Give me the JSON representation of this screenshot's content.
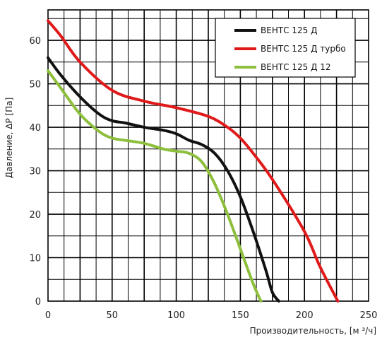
{
  "chart_data": {
    "type": "line",
    "xlabel": "Производительность, [м ³/ч]",
    "ylabel": "Давление, ΔP [Па]",
    "xlim": [
      0,
      250
    ],
    "ylim": [
      0,
      67
    ],
    "xticks": [
      "0",
      "50",
      "100",
      "150",
      "200",
      "250"
    ],
    "yticks": [
      "0",
      "10",
      "20",
      "30",
      "40",
      "50",
      "60"
    ],
    "grid": true,
    "legend_position": "top-right",
    "series": [
      {
        "name": "ВЕНТС 125 Д",
        "color": "#111111",
        "x": [
          0,
          10,
          25,
          40,
          50,
          60,
          75,
          90,
          100,
          110,
          120,
          130,
          140,
          150,
          160,
          170,
          175,
          180
        ],
        "y": [
          56,
          52,
          47,
          43,
          41.5,
          41,
          40,
          39.3,
          38.5,
          37,
          36,
          34,
          30,
          24,
          16,
          7,
          2,
          0
        ]
      },
      {
        "name": "ВЕНТС 125 Д турбо",
        "color": "#e01a1a",
        "x": [
          0,
          10,
          25,
          50,
          75,
          100,
          125,
          140,
          150,
          160,
          175,
          200,
          212,
          226
        ],
        "y": [
          64.5,
          61,
          55,
          48.5,
          46,
          44.5,
          42.5,
          40,
          37.5,
          34,
          28,
          16,
          8,
          0
        ]
      },
      {
        "name": "ВЕНТС 125 Д 12",
        "color": "#8dbf3c",
        "x": [
          0,
          10,
          25,
          40,
          50,
          60,
          75,
          90,
          100,
          110,
          120,
          130,
          140,
          150,
          160,
          166
        ],
        "y": [
          53,
          49,
          43,
          39,
          37.5,
          37,
          36.3,
          35,
          34.5,
          34,
          32,
          27,
          20,
          12,
          4,
          0
        ]
      }
    ]
  }
}
